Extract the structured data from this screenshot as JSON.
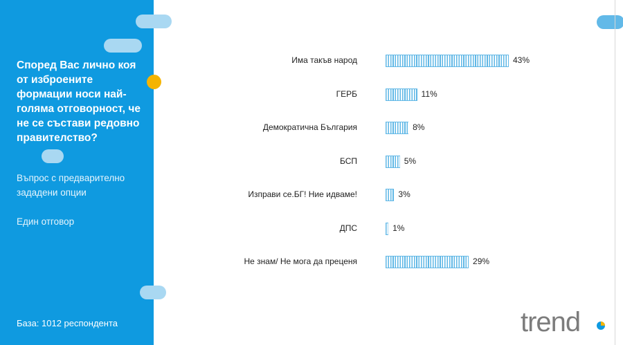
{
  "sidebar": {
    "question": "Според Вас лично коя от изброените формации носи най-голяма отговорност, че не се състави редовно правителство?",
    "note_type": "Въпрос с предварително зададени опции",
    "note_answer": "Един отговор",
    "base": "База:  1012 респондента"
  },
  "logo": {
    "text": "trend"
  },
  "colors": {
    "sidebar": "#0f9ae0",
    "bar": "#5fb7e6",
    "accent_dot": "#f5b400"
  },
  "chart_data": {
    "type": "bar",
    "orientation": "horizontal",
    "categories": [
      "Има такъв народ",
      "ГЕРБ",
      "Демократична България",
      "БСП",
      "Изправи се.БГ! Ние идваме!",
      "ДПС",
      "Не знам/ Не мога да преценя"
    ],
    "values": [
      43,
      11,
      8,
      5,
      3,
      1,
      29
    ],
    "value_labels": [
      "43%",
      "11%",
      "8%",
      "5%",
      "3%",
      "1%",
      "29%"
    ],
    "xlim": [
      0,
      43
    ]
  }
}
